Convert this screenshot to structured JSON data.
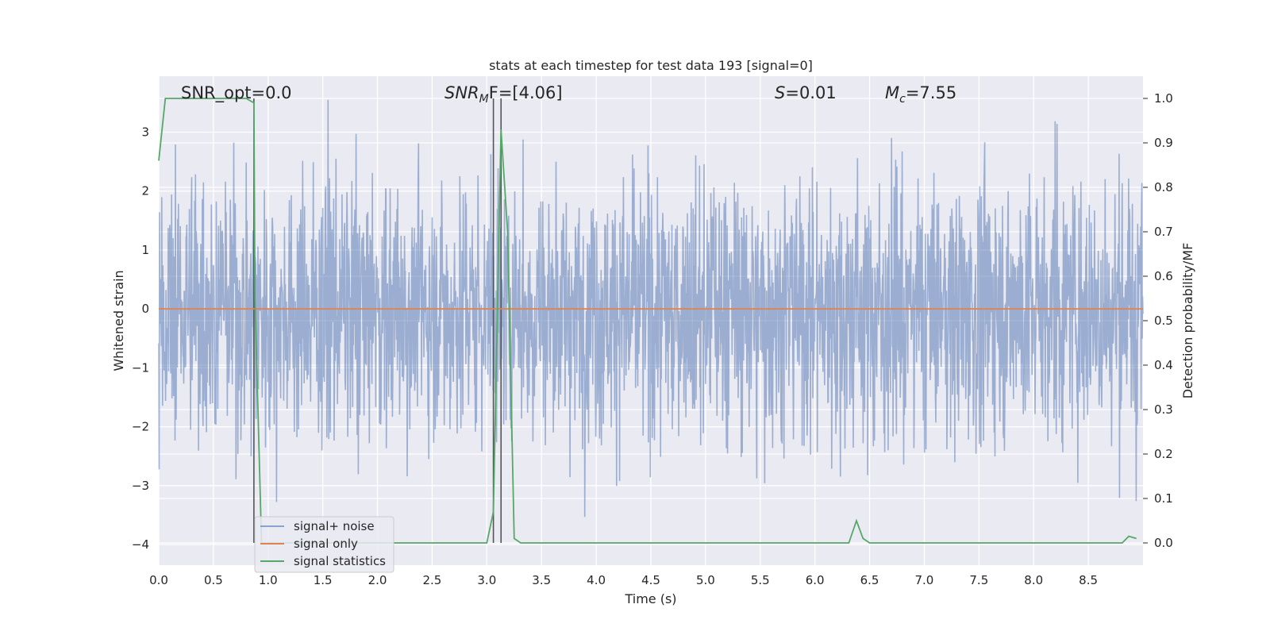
{
  "chart_data": {
    "type": "line",
    "title": "stats at each timestep for test data 193 [signal=0]",
    "xlabel": "Time (s)",
    "ylabel_left": "Whitened strain",
    "ylabel_right": "Detection probability/MF",
    "xlim": [
      0.0,
      9.0
    ],
    "ylim_left": [
      -4.35,
      3.95
    ],
    "ylim_right": [
      -0.05,
      1.05
    ],
    "x_ticks": [
      "0.0",
      "0.5",
      "1.0",
      "1.5",
      "2.0",
      "2.5",
      "3.0",
      "3.5",
      "4.0",
      "4.5",
      "5.0",
      "5.5",
      "6.0",
      "6.5",
      "7.0",
      "7.5",
      "8.0",
      "8.5"
    ],
    "y_ticks_left": [
      "−4",
      "−3",
      "−2",
      "−1",
      "0",
      "1",
      "2",
      "3"
    ],
    "y_ticks_right": [
      "0.0",
      "0.1",
      "0.2",
      "0.3",
      "0.4",
      "0.5",
      "0.6",
      "0.7",
      "0.8",
      "0.9",
      "1.0"
    ],
    "grid": true,
    "legend_location": "lower-left",
    "annotations": {
      "snr_opt": {
        "prefix": "SNR_opt=",
        "value": "0.0"
      },
      "snr_mf": {
        "base": "SNR",
        "sub": "M",
        "suffix": "F=[4.06]"
      },
      "s_stat": {
        "base": "S",
        "suffix": "=0.01"
      },
      "mc": {
        "base": "M",
        "sub": "c",
        "suffix": "=7.55"
      }
    },
    "vertical_lines_x": [
      3.06,
      3.13,
      0.87
    ],
    "series": [
      {
        "name": "signal+ noise",
        "color": "#4c72b0",
        "description_axis": "left",
        "kind": "noise",
        "typical_range": [
          -2.0,
          2.0
        ],
        "extreme_range": [
          -3.8,
          3.55
        ]
      },
      {
        "name": "signal only",
        "color": "#dd8452",
        "description_axis": "left",
        "x": [
          0.0,
          9.0
        ],
        "y": [
          0.0,
          0.0
        ]
      },
      {
        "name": "signal statistics",
        "color": "#55a868",
        "description_axis": "right",
        "x": [
          0.0,
          0.06,
          0.13,
          0.5,
          0.8,
          0.87,
          0.88,
          0.94,
          2.0,
          3.0,
          3.06,
          3.13,
          3.19,
          3.25,
          3.31,
          4.0,
          6.0,
          6.31,
          6.38,
          6.44,
          6.5,
          7.5,
          8.81,
          8.87,
          8.94
        ],
        "y": [
          0.86,
          1.0,
          1.0,
          1.0,
          1.0,
          0.99,
          0.55,
          0.0,
          0.0,
          0.0,
          0.07,
          0.93,
          0.7,
          0.01,
          0.0,
          0.0,
          0.0,
          0.0,
          0.05,
          0.01,
          0.0,
          0.0,
          0.0,
          0.015,
          0.01
        ]
      }
    ]
  }
}
